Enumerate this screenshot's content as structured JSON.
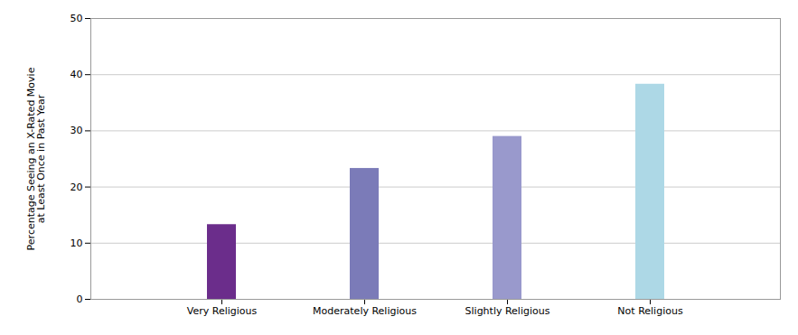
{
  "chart_data": {
    "type": "bar",
    "ylabel": "Percentage Seeing an X-Rated Movie\nat Least Once in Past Year",
    "categories": [
      "Very Religious",
      "Moderately Religious",
      "Slightly Religious",
      "Not Religious"
    ],
    "values": [
      13.3,
      23.3,
      29.0,
      38.3
    ],
    "colors": [
      "#6b2d8b",
      "#7b7bb8",
      "#9999cc",
      "#add8e6"
    ],
    "ylim": [
      0,
      50
    ],
    "yticks": [
      0,
      10,
      20,
      30,
      40,
      50
    ],
    "grid": true
  }
}
